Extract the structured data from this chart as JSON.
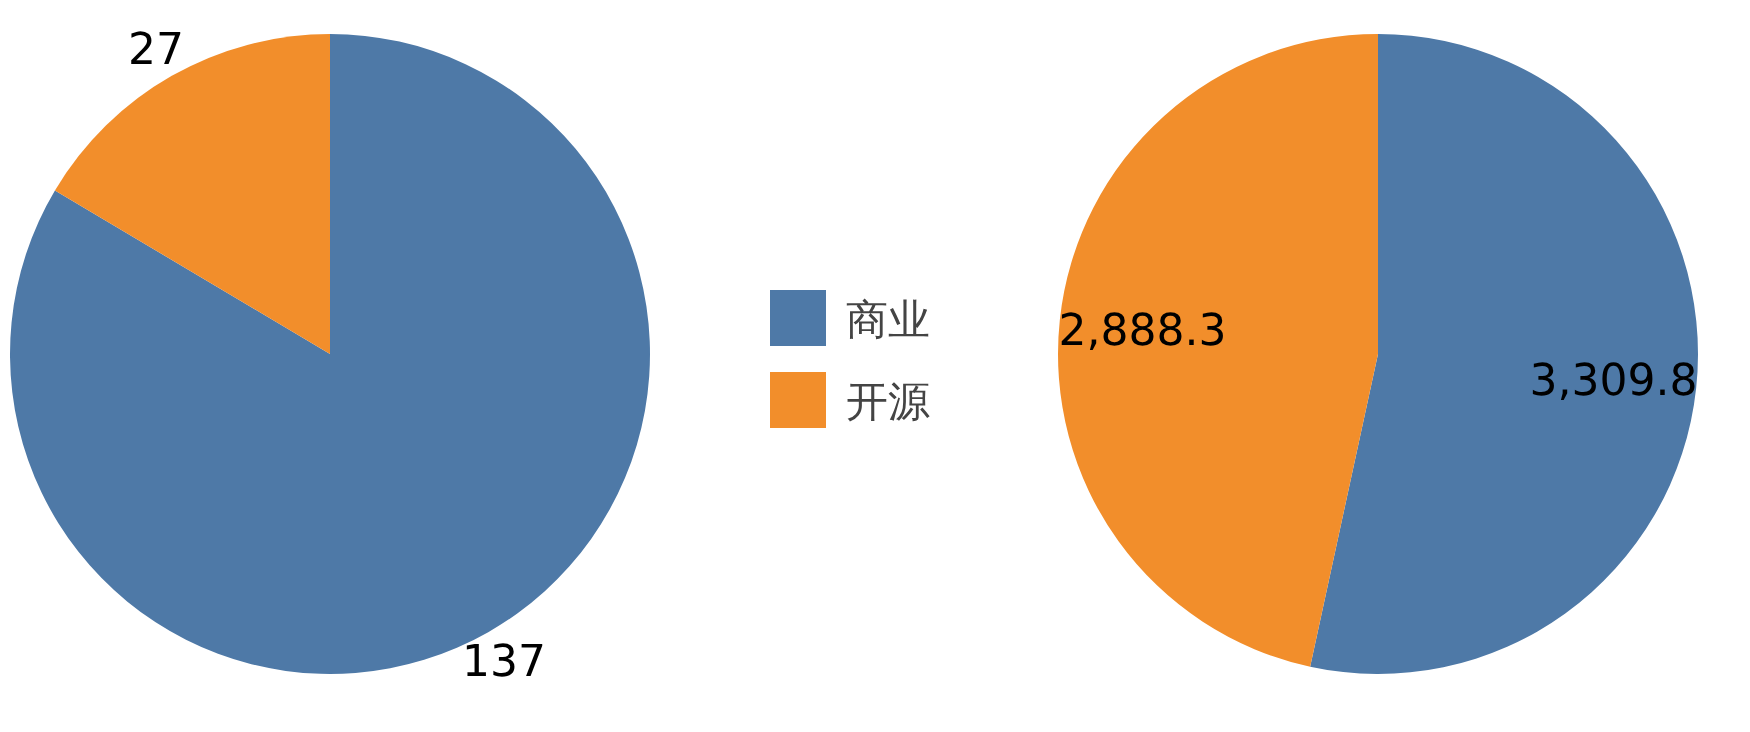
{
  "chart_data": [
    {
      "type": "pie",
      "categories": [
        "商业",
        "开源"
      ],
      "values": [
        137,
        27
      ],
      "colors": [
        "#4e79a7",
        "#f28e2b"
      ],
      "data_labels": true,
      "legend": "right"
    },
    {
      "type": "pie",
      "categories": [
        null,
        null
      ],
      "values": [
        3309.8,
        2888.3
      ],
      "colors": [
        "#4e79a7",
        "#f28e2b"
      ],
      "value_labels": [
        "3,309.8",
        "2,888.3"
      ]
    }
  ]
}
